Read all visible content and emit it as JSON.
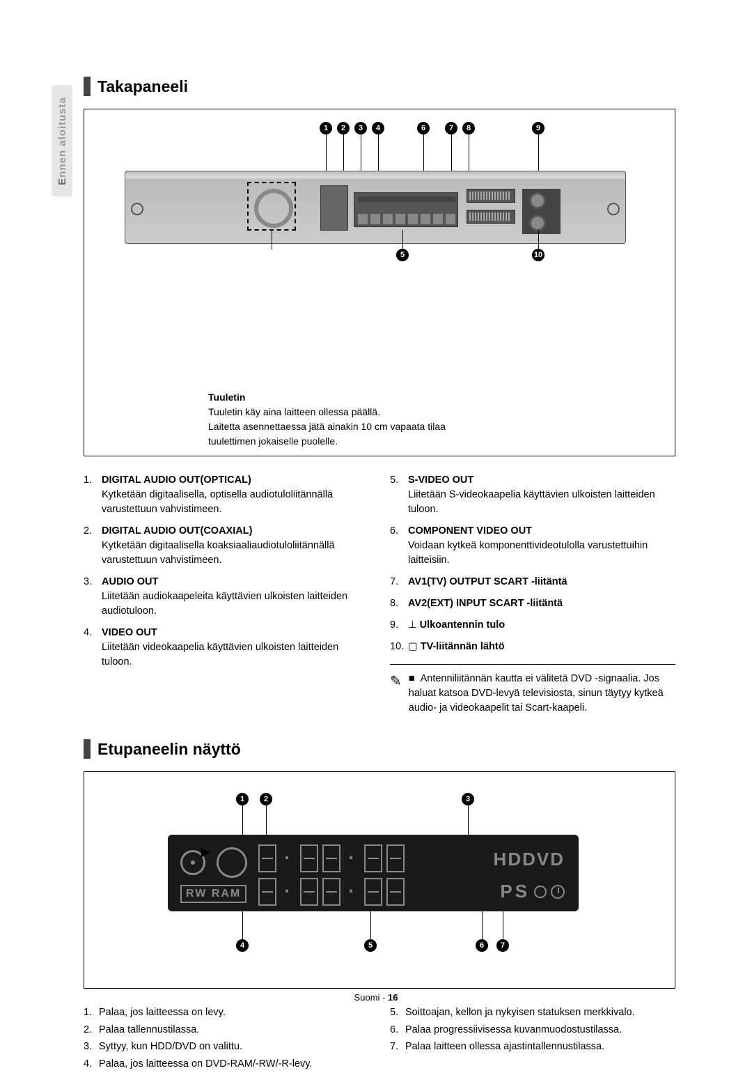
{
  "sideTab": {
    "prefix": "E",
    "rest": "nnen aloitusta"
  },
  "section1": {
    "title": "Takapaneeli",
    "callouts_top": [
      "1",
      "2",
      "3",
      "4",
      "6",
      "7",
      "8",
      "9"
    ],
    "callouts_bottom": [
      "5",
      "10"
    ],
    "fan": {
      "title": "Tuuletin",
      "lines": [
        "Tuuletin käy aina laitteen ollessa päällä.",
        "Laitetta asennettaessa jätä ainakin 10 cm vapaata tilaa",
        "tuulettimen jokaiselle puolelle."
      ]
    },
    "left": [
      {
        "n": "1.",
        "t": "DIGITAL AUDIO OUT(OPTICAL)",
        "d": "Kytketään digitaalisella, optisella audiotuloliitännällä varustettuun vahvistimeen."
      },
      {
        "n": "2.",
        "t": "DIGITAL AUDIO OUT(COAXIAL)",
        "d": "Kytketään digitaalisella koaksiaaliaudiotuloliitännällä varustettuun vahvistimeen."
      },
      {
        "n": "3.",
        "t": "AUDIO OUT",
        "d": "Liitetään audiokaapeleita käyttävien ulkoisten laitteiden audiotuloon."
      },
      {
        "n": "4.",
        "t": "VIDEO OUT",
        "d": "Liitetään videokaapelia käyttävien ulkoisten laitteiden tuloon."
      }
    ],
    "right": [
      {
        "n": "5.",
        "t": "S-VIDEO OUT",
        "d": "Liitetään S-videokaapelia käyttävien ulkoisten laitteiden tuloon."
      },
      {
        "n": "6.",
        "t": "COMPONENT VIDEO OUT",
        "d": "Voidaan kytkeä komponenttivideotulolla varustettuihin laitteisiin."
      },
      {
        "n": "7.",
        "t": "AV1(TV) OUTPUT SCART -liitäntä",
        "d": ""
      },
      {
        "n": "8.",
        "t": "AV2(EXT) INPUT SCART -liitäntä",
        "d": ""
      },
      {
        "n": "9.",
        "t": "Ulkoantennin tulo",
        "d": "",
        "icon": "⊥"
      },
      {
        "n": "10.",
        "t": "TV-liitännän lähtö",
        "d": "",
        "icon": "▢"
      }
    ],
    "note": "Antenniliitännän kautta ei välitetä DVD -signaalia. Jos haluat katsoa DVD-levyä televisiosta, sinun täytyy kytkeä audio- ja videokaapelit tai Scart-kaapeli."
  },
  "section2": {
    "title": "Etupaneelin näyttö",
    "callouts_top": [
      "1",
      "2",
      "3"
    ],
    "callouts_bottom": [
      "4",
      "5",
      "6",
      "7"
    ],
    "hddvd": "HDDVD",
    "rwram": "RW RAM",
    "pso": "PS",
    "left": [
      {
        "n": "1.",
        "d": "Palaa, jos laitteessa on levy."
      },
      {
        "n": "2.",
        "d": "Palaa tallennustilassa."
      },
      {
        "n": "3.",
        "d": "Syttyy, kun HDD/DVD on valittu."
      },
      {
        "n": "4.",
        "d": "Palaa, jos laitteessa on DVD-RAM/-RW/-R-levy."
      }
    ],
    "right": [
      {
        "n": "5.",
        "d": "Soittoajan, kellon ja nykyisen statuksen merkkivalo."
      },
      {
        "n": "6.",
        "d": "Palaa progressiivisessa kuvanmuodostustilassa."
      },
      {
        "n": "7.",
        "d": "Palaa laitteen ollessa ajastintallennustilassa."
      }
    ]
  },
  "footer": {
    "lang": "Suomi",
    "sep": " - ",
    "page": "16"
  },
  "colors": {
    "text": "#000",
    "tab_bg": "#e6e6e6",
    "tab_text": "#999",
    "display_bg": "#1a1a1a",
    "seg": "#888"
  }
}
